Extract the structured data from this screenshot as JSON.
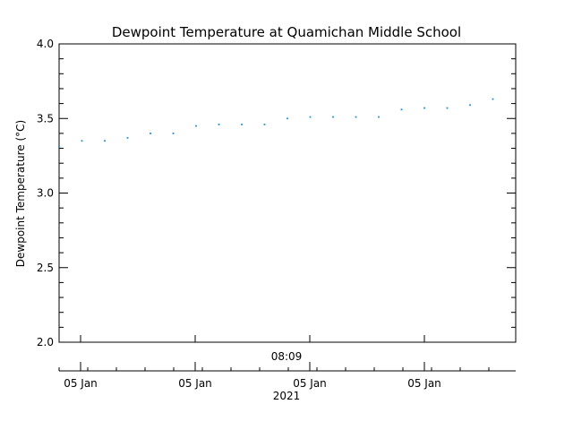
{
  "colors": {
    "background": "#ffffff",
    "axis": "#000000",
    "series": "#1f8fd0"
  },
  "chart_data": {
    "type": "scatter",
    "title": "Dewpoint Temperature at Quamichan Middle School",
    "ylabel": "Dewpoint Temperature (°C)",
    "xlabel": "2021",
    "time_label": "08:09",
    "ylim": [
      2.0,
      4.0
    ],
    "yticks": [
      "2.0",
      "2.5",
      "3.0",
      "3.5",
      "4.0"
    ],
    "xticks": [
      "05 Jan",
      "05 Jan",
      "05 Jan",
      "05 Jan"
    ],
    "grid": false,
    "series": [
      {
        "values": [
          3.31,
          3.35,
          3.35,
          3.37,
          3.4,
          3.4,
          3.45,
          3.46,
          3.46,
          3.46,
          3.5,
          3.51,
          3.51,
          3.51,
          3.51,
          3.56,
          3.57,
          3.57,
          3.59,
          3.63
        ]
      }
    ]
  }
}
